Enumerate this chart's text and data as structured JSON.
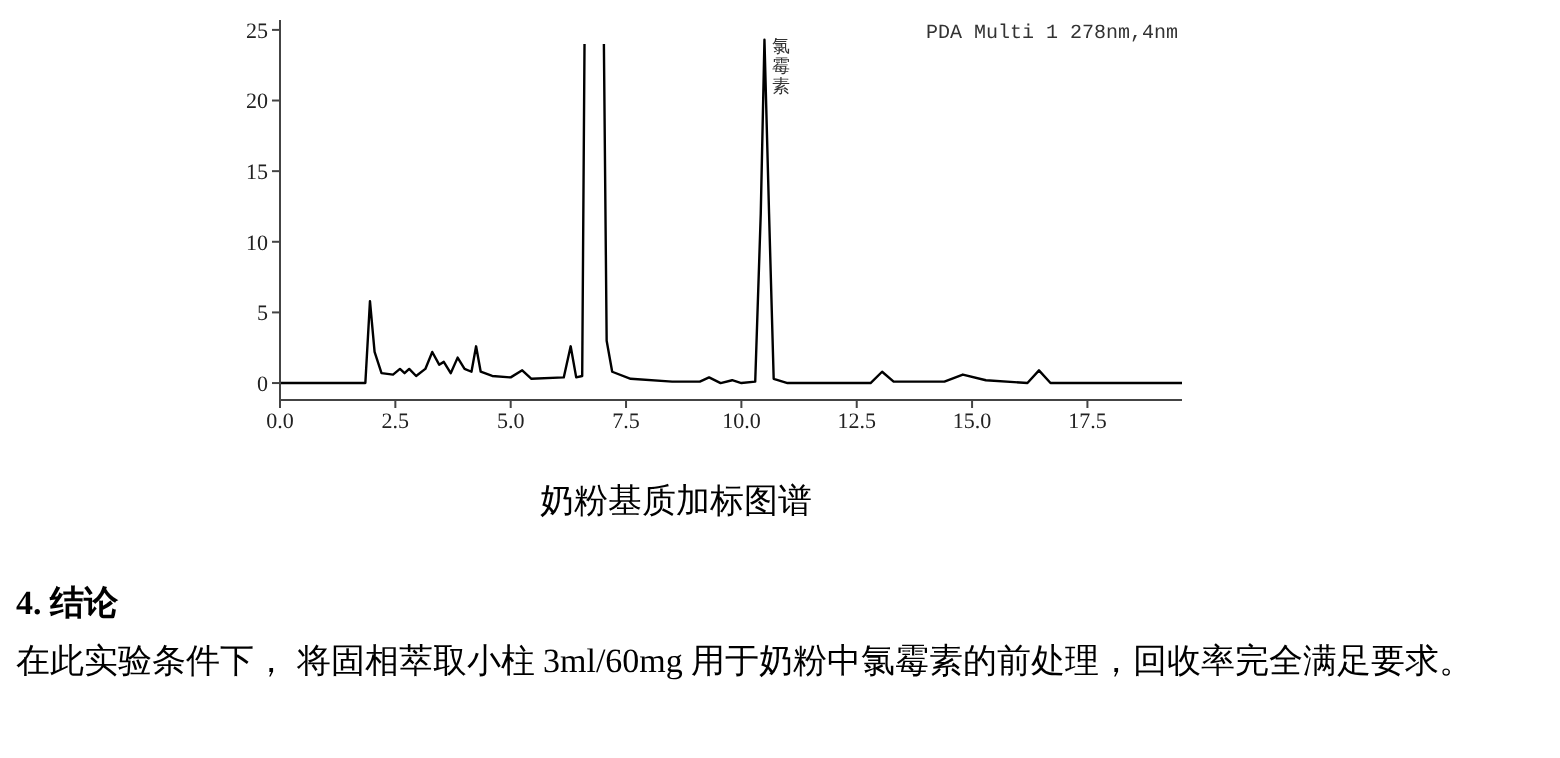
{
  "chart_data": {
    "type": "line",
    "x": [
      0,
      1.85,
      1.95,
      2.05,
      2.2,
      2.45,
      2.6,
      2.7,
      2.8,
      2.95,
      3.15,
      3.3,
      3.45,
      3.55,
      3.7,
      3.85,
      4.0,
      4.15,
      4.25,
      4.35,
      4.6,
      5.0,
      5.25,
      5.45,
      6.15,
      6.3,
      6.42,
      6.55,
      6.6,
      6.8,
      7.02,
      7.08,
      7.2,
      7.6,
      8.5,
      9.1,
      9.3,
      9.55,
      9.8,
      10.0,
      10.3,
      10.42,
      10.5,
      10.6,
      10.7,
      11.0,
      12.8,
      13.05,
      13.3,
      14.4,
      14.8,
      15.3,
      16.2,
      16.45,
      16.7,
      19.55
    ],
    "series": [
      {
        "color": "#000000",
        "values": [
          0,
          0,
          5.8,
          2.2,
          0.7,
          0.6,
          1.0,
          0.7,
          1.0,
          0.5,
          1.0,
          2.2,
          1.3,
          1.5,
          0.7,
          1.8,
          1.0,
          0.8,
          2.6,
          0.8,
          0.5,
          0.4,
          0.9,
          0.3,
          0.4,
          2.6,
          0.4,
          0.5,
          24,
          null,
          24,
          3.0,
          0.8,
          0.3,
          0.1,
          0.1,
          0.4,
          0.0,
          0.2,
          0.0,
          0.1,
          12,
          24.3,
          12,
          0.3,
          0,
          0,
          0.8,
          0.1,
          0.1,
          0.6,
          0.2,
          0,
          0.9,
          0,
          0
        ]
      }
    ],
    "xlim": [
      0,
      19.55
    ],
    "ylim": [
      -1.2,
      25.7
    ],
    "xticks": [
      {
        "value": 0,
        "label": "0.0"
      },
      {
        "value": 2.5,
        "label": "2.5"
      },
      {
        "value": 5,
        "label": "5.0"
      },
      {
        "value": 7.5,
        "label": "7.5"
      },
      {
        "value": 10,
        "label": "10.0"
      },
      {
        "value": 12.5,
        "label": "12.5"
      },
      {
        "value": 15,
        "label": "15.0"
      },
      {
        "value": 17.5,
        "label": "17.5"
      }
    ],
    "yticks": [
      0,
      5,
      10,
      15,
      20,
      25
    ],
    "grid": false,
    "legend": false,
    "marker": "none",
    "line_style": "solid",
    "annotations": [
      "PDA Multi 1 278nm,4nm",
      {
        "text": "氯霉素",
        "x": 10.5,
        "y": 24.3
      },
      "奶粉基质加标图谱",
      "4. 结论",
      "在此实验条件下， 将固相萃取小柱 3ml/60mg 用于奶粉中氯霉素的前处理，回收率完全满足要求。"
    ]
  }
}
